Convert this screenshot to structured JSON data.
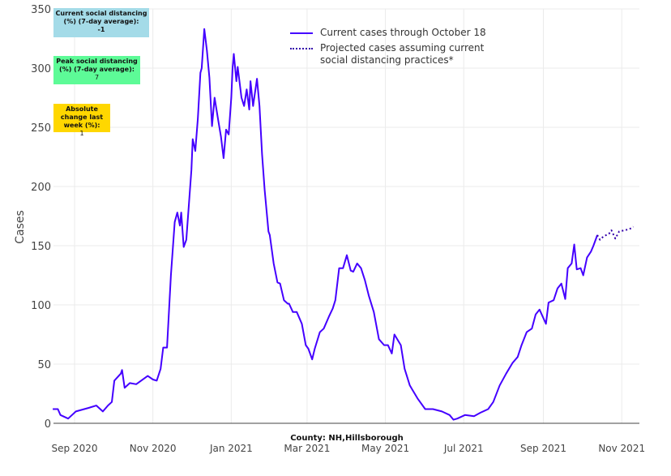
{
  "boxes": [
    {
      "label": "Current social distancing (%) (7-day average):",
      "value": "-1",
      "color": "#a4dbe8"
    },
    {
      "label": "Peak social distancing (%) (7-day average):",
      "value": "7",
      "color": "#5dfb97"
    },
    {
      "label": "Absolute change last week (%):",
      "value": "1",
      "color": "#ffd700"
    }
  ],
  "chart_data": {
    "type": "line",
    "title": "",
    "xlabel": "County: NH,Hillsborough",
    "ylabel": "Cases",
    "x_unit": "days since 2020-08-15",
    "xlim": [
      0,
      457
    ],
    "ylim": [
      0,
      350
    ],
    "grid": true,
    "legend_position": "top-center",
    "yticks": [
      0,
      50,
      100,
      150,
      200,
      250,
      300,
      350
    ],
    "xticks": [
      {
        "x": 17,
        "label": "Sep 2020"
      },
      {
        "x": 78,
        "label": "Nov 2020"
      },
      {
        "x": 139,
        "label": "Jan 2021"
      },
      {
        "x": 198,
        "label": "Mar 2021"
      },
      {
        "x": 259,
        "label": "May 2021"
      },
      {
        "x": 320,
        "label": "Jul 2021"
      },
      {
        "x": 382,
        "label": "Sep 2021"
      },
      {
        "x": 443,
        "label": "Nov 2021"
      }
    ],
    "series": [
      {
        "name": "Current cases through October 18",
        "color": "#4400ff",
        "style": "solid",
        "x": [
          0,
          4,
          6,
          12,
          18,
          28,
          34,
          39,
          43,
          46,
          48,
          53,
          54,
          56,
          60,
          65,
          74,
          78,
          81,
          84,
          86,
          89,
          92,
          95,
          97,
          99,
          100,
          102,
          104,
          108,
          109,
          111,
          113,
          115,
          116,
          118,
          120,
          122,
          124,
          126,
          129,
          131,
          133,
          135,
          137,
          139,
          140,
          141,
          143,
          144,
          147,
          149,
          151,
          153,
          154,
          156,
          159,
          161,
          163,
          165,
          168,
          169,
          172,
          175,
          177,
          180,
          183,
          184,
          187,
          190,
          194,
          197,
          199,
          202,
          204,
          208,
          211,
          215,
          218,
          220,
          223,
          226,
          229,
          232,
          234,
          237,
          240,
          243,
          246,
          250,
          254,
          258,
          261,
          264,
          266,
          271,
          274,
          278,
          284,
          290,
          296,
          303,
          309,
          312,
          315,
          321,
          328,
          333,
          339,
          343,
          348,
          353,
          358,
          362,
          365,
          369,
          373,
          376,
          379,
          384,
          386,
          390,
          393,
          396,
          399,
          401,
          404,
          406,
          408,
          411,
          413,
          416,
          419,
          421,
          424
        ],
        "y": [
          12,
          12,
          7,
          4,
          10,
          13,
          15,
          10,
          15,
          18,
          36,
          42,
          45,
          30,
          34,
          33,
          40,
          37,
          36,
          46,
          64,
          64,
          125,
          170,
          178,
          167,
          178,
          149,
          155,
          214,
          240,
          230,
          258,
          296,
          300,
          333,
          315,
          292,
          251,
          275,
          255,
          242,
          224,
          248,
          244,
          275,
          300,
          312,
          289,
          301,
          275,
          268,
          282,
          265,
          289,
          268,
          291,
          268,
          227,
          197,
          162,
          159,
          135,
          119,
          118,
          104,
          101,
          101,
          94,
          94,
          84,
          66,
          63,
          54,
          63,
          77,
          80,
          90,
          97,
          104,
          131,
          131,
          142,
          129,
          128,
          135,
          131,
          121,
          108,
          94,
          71,
          66,
          66,
          59,
          75,
          66,
          46,
          32,
          21,
          12,
          12,
          10,
          7,
          3,
          4,
          7,
          6,
          9,
          12,
          18,
          32,
          42,
          51,
          56,
          66,
          77,
          80,
          92,
          96,
          84,
          102,
          104,
          114,
          118,
          105,
          131,
          135,
          151,
          130,
          131,
          125,
          140,
          145,
          150,
          159
        ]
      },
      {
        "name": "Projected cases assuming current social distancing practices*",
        "color": "#3300aa",
        "style": "dotted",
        "x": [
          424,
          426,
          429,
          433,
          435,
          438,
          441,
          445,
          449,
          452
        ],
        "y": [
          159,
          155,
          158,
          160,
          163,
          156,
          162,
          163,
          164,
          166
        ]
      }
    ]
  }
}
